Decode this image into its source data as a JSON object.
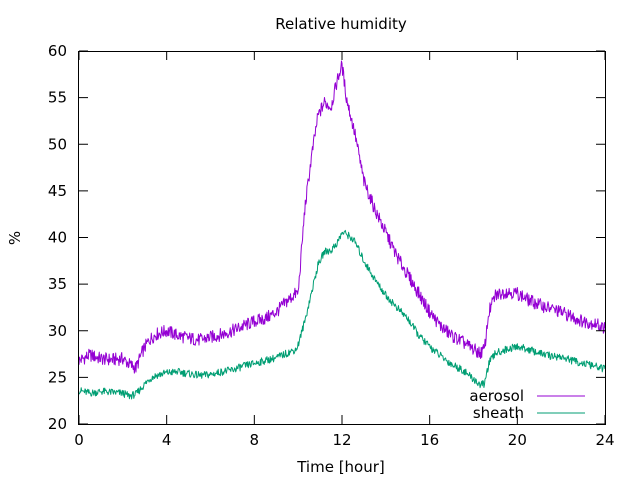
{
  "chart_data": {
    "type": "line",
    "title": "Relative humidity",
    "xlabel": "Time [hour]",
    "ylabel": "%",
    "xlim": [
      0,
      24
    ],
    "ylim": [
      20,
      60
    ],
    "xticks": [
      0,
      4,
      8,
      12,
      16,
      20,
      24
    ],
    "yticks": [
      20,
      25,
      30,
      35,
      40,
      45,
      50,
      55,
      60
    ],
    "grid": false,
    "legend_position": "bottom-right",
    "series": [
      {
        "name": "aerosol",
        "color": "#9400d3",
        "x": [
          0,
          0.5,
          1,
          1.5,
          2,
          2.3,
          2.6,
          2.9,
          3.2,
          3.5,
          4,
          4.5,
          5,
          5.5,
          6,
          6.5,
          7,
          7.5,
          8,
          8.5,
          9,
          9.5,
          9.9,
          10,
          10.3,
          10.6,
          10.9,
          11.2,
          11.5,
          11.8,
          12,
          12.2,
          12.4,
          12.6,
          13,
          13.5,
          14,
          14.5,
          15,
          15.5,
          16,
          16.5,
          17,
          17.5,
          18,
          18.3,
          18.5,
          18.7,
          19,
          19.5,
          20,
          20.5,
          21,
          21.5,
          22,
          22.5,
          23,
          23.5,
          24
        ],
        "y": [
          26.8,
          27.4,
          27.0,
          26.9,
          27.0,
          26.4,
          26.0,
          27.8,
          29.0,
          29.6,
          30.0,
          29.5,
          29.2,
          29.0,
          29.3,
          29.6,
          30.0,
          30.5,
          31.0,
          31.3,
          32.0,
          33.2,
          34.0,
          34.0,
          43.0,
          48.5,
          53.0,
          54.5,
          54.0,
          57.0,
          58.5,
          55.0,
          53.0,
          51.0,
          46.0,
          43.0,
          40.5,
          38.0,
          36.0,
          34.0,
          32.0,
          30.5,
          29.5,
          28.8,
          28.0,
          27.6,
          28.0,
          32.0,
          33.8,
          34.2,
          34.0,
          33.3,
          32.8,
          32.4,
          32.0,
          31.5,
          31.0,
          30.8,
          30.3
        ]
      },
      {
        "name": "sheath",
        "color": "#009e73",
        "x": [
          0,
          0.5,
          1,
          1.5,
          2,
          2.3,
          2.6,
          2.9,
          3.2,
          3.5,
          4,
          4.5,
          5,
          5.5,
          6,
          6.5,
          7,
          7.5,
          8,
          8.5,
          9,
          9.5,
          9.9,
          10,
          10.3,
          10.6,
          10.9,
          11.2,
          11.5,
          11.8,
          12,
          12.2,
          12.4,
          12.6,
          13,
          13.5,
          14,
          14.5,
          15,
          15.5,
          16,
          16.5,
          17,
          17.5,
          18,
          18.3,
          18.5,
          18.7,
          19,
          19.5,
          20,
          20.5,
          21,
          21.5,
          22,
          22.5,
          23,
          23.5,
          24
        ],
        "y": [
          23.6,
          23.3,
          23.5,
          23.4,
          23.3,
          23.0,
          23.2,
          24.0,
          24.8,
          25.2,
          25.5,
          25.6,
          25.4,
          25.2,
          25.3,
          25.6,
          25.8,
          26.2,
          26.5,
          26.8,
          27.1,
          27.6,
          28.0,
          28.5,
          31.0,
          34.0,
          37.0,
          38.5,
          38.6,
          39.5,
          40.5,
          40.4,
          40.0,
          39.5,
          37.5,
          35.5,
          33.8,
          32.5,
          31.3,
          29.5,
          28.3,
          27.3,
          26.4,
          25.8,
          24.8,
          24.2,
          24.3,
          26.5,
          27.6,
          28.0,
          28.3,
          28.0,
          27.6,
          27.3,
          27.2,
          26.8,
          26.5,
          26.2,
          25.9
        ]
      }
    ]
  }
}
